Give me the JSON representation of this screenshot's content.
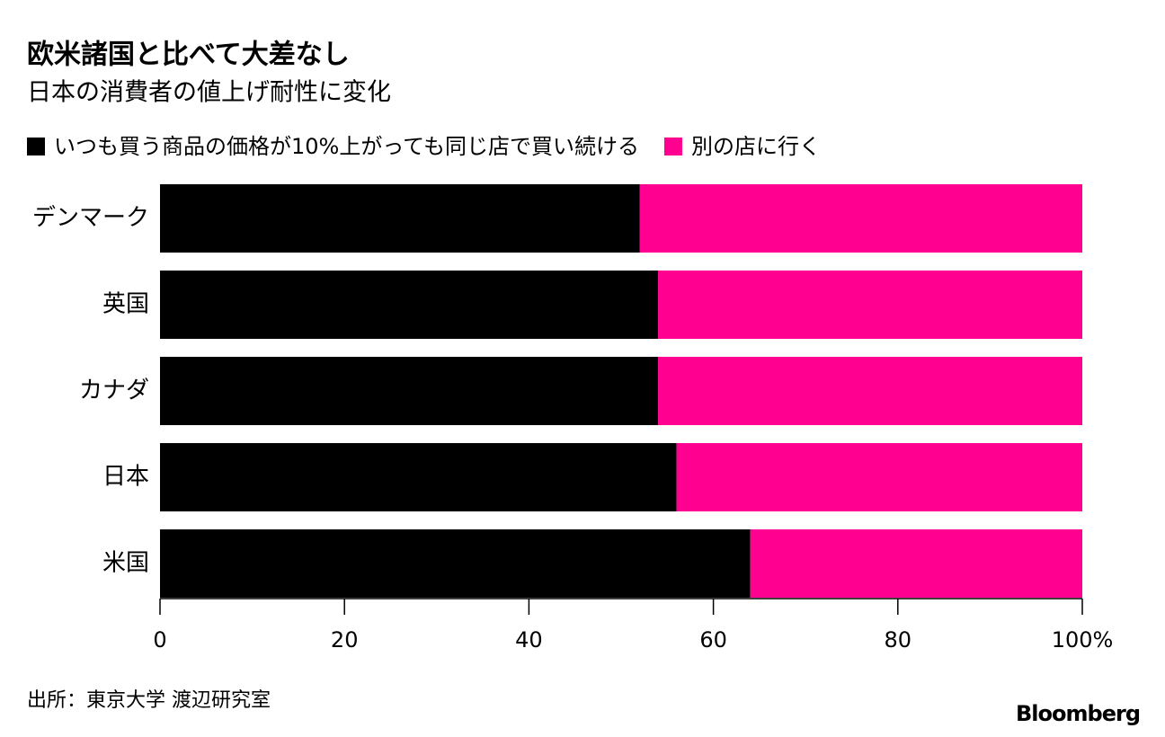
{
  "chart_data": {
    "type": "stacked_bar_horizontal",
    "title": "欧米諸国と比べて大差なし",
    "subtitle": "日本の消費者の値上げ耐性に変化",
    "categories": [
      "デンマーク",
      "英国",
      "カナダ",
      "日本",
      "米国"
    ],
    "series": [
      {
        "name": "いつも買う商品の価格が10%上がっても同じ店で買い続ける",
        "color": "#000000",
        "values": [
          52,
          54,
          54,
          56,
          64
        ]
      },
      {
        "name": "別の店に行く",
        "color": "#ff0090",
        "values": [
          48,
          46,
          46,
          44,
          36
        ]
      }
    ],
    "xlim": [
      0,
      100
    ],
    "xticks": [
      0,
      20,
      40,
      60,
      80,
      {
        "value": 100,
        "label": "100%"
      }
    ],
    "legend": "top-left",
    "source": "出所：東京大学 渡辺研究室",
    "brand": "Bloomberg"
  }
}
